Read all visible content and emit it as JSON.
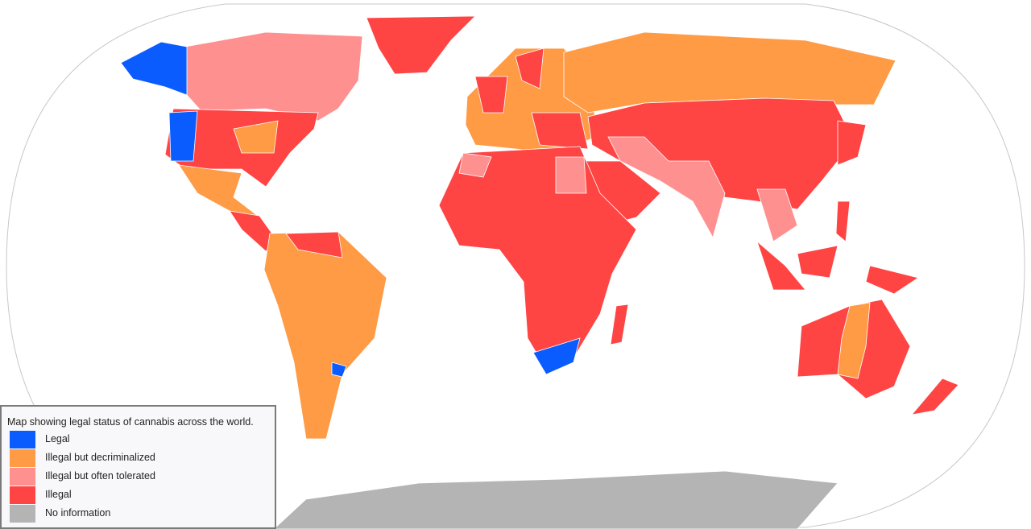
{
  "legend": {
    "title": "Map showing legal status of cannabis across the world.",
    "items": [
      {
        "label": "Legal",
        "color": "#0b5cff"
      },
      {
        "label": "Illegal but decriminalized",
        "color": "#ff9a45"
      },
      {
        "label": "Illegal but often tolerated",
        "color": "#ff9090"
      },
      {
        "label": "Illegal",
        "color": "#ff4444"
      },
      {
        "label": "No information",
        "color": "#b4b4b4"
      }
    ]
  }
}
